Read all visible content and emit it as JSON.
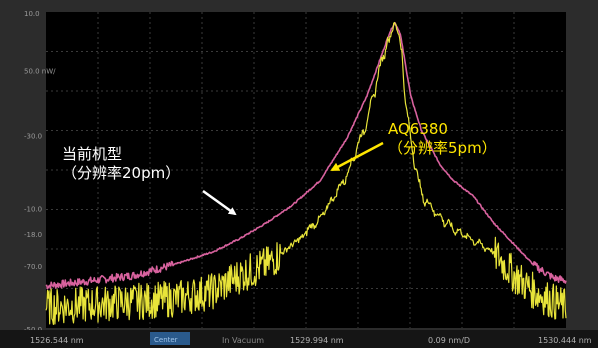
{
  "chart_data": {
    "type": "line",
    "title": "",
    "xlabel": "",
    "ylabel": "",
    "grid": true,
    "xlim": [
      1526.544,
      1530.444
    ],
    "ylim": [
      -50,
      10
    ],
    "y_tick_labels": [
      "10.0",
      "50.0 nW/",
      "-30.0",
      "-10.0",
      "-18.0",
      "-70.0",
      "-50.0"
    ],
    "footer": {
      "start": "1526.544 nm",
      "mode": "Center",
      "mode_value": "1529.994 nm",
      "span": "0.09 nm/D",
      "stop": "1530.444 nm",
      "note": "In Vacuum",
      "db_scale": "50.0 nW/"
    },
    "series": [
      {
        "label_lines": [
          "当前机型",
          "（分辨率20pm）"
        ],
        "color": "#d8629e",
        "x": [
          1526.544,
          1526.9,
          1527.2,
          1527.5,
          1527.8,
          1528.0,
          1528.2,
          1528.4,
          1528.6,
          1528.8,
          1528.95,
          1529.05,
          1529.12,
          1529.16,
          1529.2,
          1529.24,
          1529.28,
          1529.36,
          1529.5,
          1529.6,
          1529.75,
          1529.9,
          1530.05,
          1530.2,
          1530.35,
          1530.444
        ],
        "values": [
          -42,
          -41,
          -40,
          -38,
          -35.5,
          -33,
          -30,
          -26.5,
          -22,
          -14,
          -6,
          1,
          6,
          8,
          6,
          0,
          -6,
          -12.5,
          -19,
          -22,
          -25,
          -30,
          -34,
          -38,
          -40.5,
          -41
        ]
      },
      {
        "label_lines": [
          "AQ6380",
          "（分辨率5pm）"
        ],
        "color": "#e8e43a",
        "x": [
          1526.544,
          1526.9,
          1527.2,
          1527.5,
          1527.8,
          1528.0,
          1528.2,
          1528.4,
          1528.6,
          1528.8,
          1528.95,
          1529.05,
          1529.12,
          1529.16,
          1529.2,
          1529.24,
          1529.28,
          1529.36,
          1529.5,
          1529.6,
          1529.75,
          1529.9,
          1530.05,
          1530.2,
          1530.35,
          1530.444
        ],
        "values": [
          -46,
          -45.5,
          -45,
          -44.5,
          -43,
          -40,
          -38,
          -34,
          -30,
          -22,
          -12,
          -2,
          5,
          8,
          5,
          -8,
          -16,
          -26,
          -30,
          -32,
          -34,
          -36,
          -40,
          -43,
          -45,
          -46
        ]
      }
    ]
  }
}
